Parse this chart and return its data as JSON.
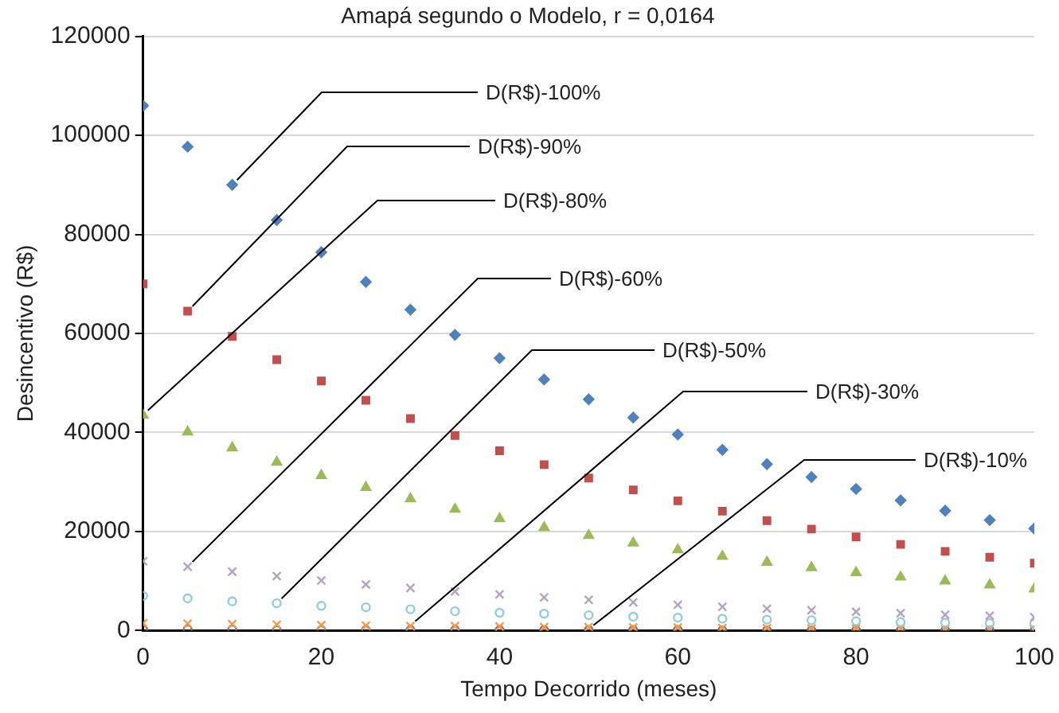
{
  "chart_data": {
    "type": "scatter",
    "title": "Amapá segundo o Modelo, r = 0,0164",
    "xlabel": "Tempo Decorrido (meses)",
    "ylabel": "Desincentivo (R$)",
    "x": [
      0,
      5,
      10,
      15,
      20,
      25,
      30,
      35,
      40,
      45,
      50,
      55,
      60,
      65,
      70,
      75,
      80,
      85,
      90,
      95,
      100
    ],
    "xlim": [
      0,
      100
    ],
    "xticks": [
      0,
      20,
      40,
      60,
      80,
      100
    ],
    "ylim": [
      0,
      120000
    ],
    "yticks": [
      0,
      20000,
      40000,
      60000,
      80000,
      100000,
      120000
    ],
    "grid": "y",
    "legend": false,
    "series": [
      {
        "name": "D(R$)-100%",
        "color": "#4f81bd",
        "marker": "diamond",
        "values": [
          106000,
          97700,
          90000,
          82900,
          76400,
          70400,
          64800,
          59700,
          55000,
          50700,
          46700,
          43000,
          39600,
          36500,
          33600,
          31000,
          28600,
          26300,
          24200,
          22300,
          20600
        ]
      },
      {
        "name": "D(R$)-90%",
        "color": "#c0504d",
        "marker": "square",
        "values": [
          70000,
          64500,
          59400,
          54700,
          50400,
          46500,
          42800,
          39400,
          36300,
          33500,
          30800,
          28400,
          26200,
          24100,
          22200,
          20500,
          18900,
          17400,
          16000,
          14800,
          13600
        ]
      },
      {
        "name": "D(R$)-80%",
        "color": "#9bbb59",
        "marker": "triangle",
        "values": [
          43500,
          40100,
          36900,
          34000,
          31300,
          28900,
          26600,
          24500,
          22600,
          20800,
          19200,
          17700,
          16300,
          15000,
          13800,
          12700,
          11700,
          10800,
          10000,
          9200,
          8400
        ]
      },
      {
        "name": "D(R$)-60%",
        "color": "#b3a2c7",
        "marker": "cross",
        "values": [
          14000,
          12900,
          11900,
          11000,
          10100,
          9300,
          8600,
          7900,
          7300,
          6700,
          6200,
          5700,
          5200,
          4800,
          4400,
          4100,
          3800,
          3500,
          3200,
          3000,
          2700
        ]
      },
      {
        "name": "D(R$)-50%",
        "color": "#93cddd",
        "marker": "circle",
        "values": [
          7000,
          6500,
          5900,
          5500,
          5000,
          4700,
          4300,
          3900,
          3600,
          3400,
          3100,
          2800,
          2600,
          2400,
          2200,
          2100,
          1900,
          1700,
          1600,
          1500,
          1400
        ]
      },
      {
        "name": "D(R$)-30%",
        "color": "#f79646",
        "marker": "cross",
        "values": [
          1500,
          1400,
          1300,
          1200,
          1100,
          1000,
          900,
          900,
          800,
          700,
          700,
          600,
          600,
          500,
          500,
          400,
          400,
          400,
          300,
          300,
          300
        ]
      },
      {
        "name": "D(R$)-10%",
        "color": "#8c6e63",
        "marker": "circle",
        "values": [
          200,
          200,
          200,
          100,
          100,
          100,
          100,
          100,
          100,
          100,
          100,
          100,
          100,
          0,
          0,
          0,
          0,
          0,
          0,
          0,
          0
        ]
      }
    ]
  }
}
